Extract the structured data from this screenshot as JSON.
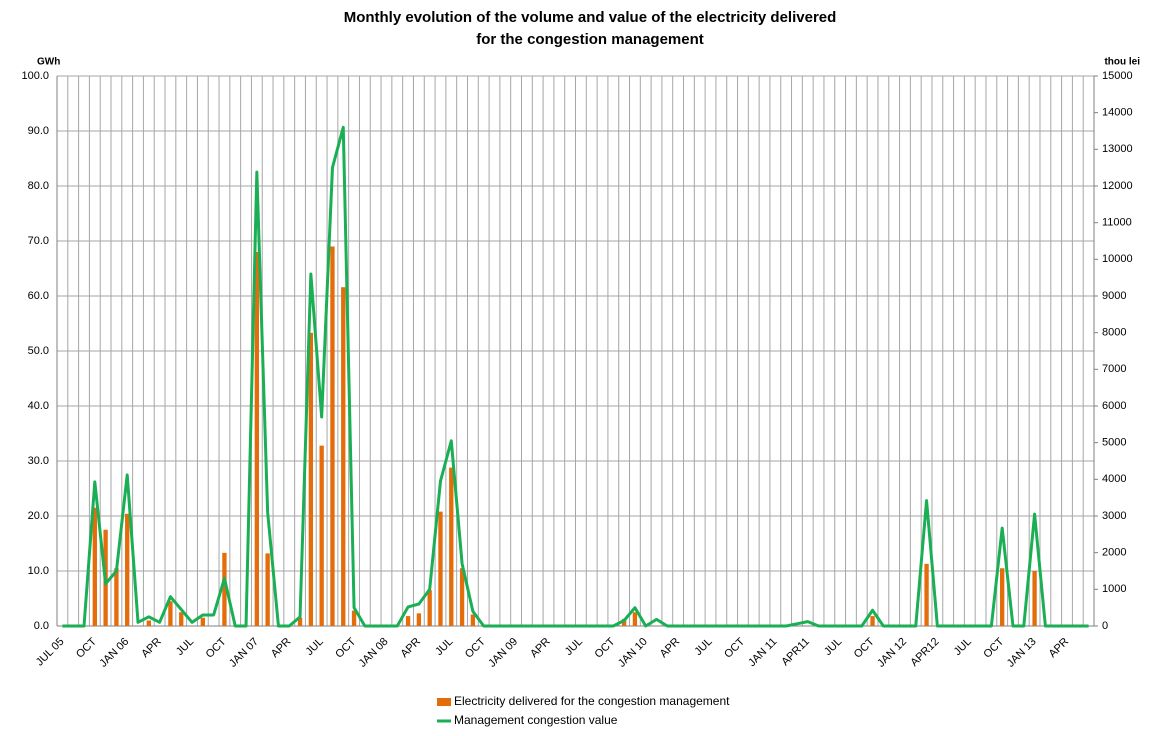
{
  "chart_data": {
    "type": "bar-line",
    "title": [
      "Monthly evolution of the volume and value of the electricity delivered",
      "for the congestion management"
    ],
    "y_label": "GWh",
    "y2_label": "thou lei",
    "categories": [
      "JUL 05",
      null,
      null,
      "OCT",
      null,
      null,
      "JAN 06",
      null,
      null,
      "APR",
      null,
      null,
      "JUL",
      null,
      null,
      "OCT",
      null,
      null,
      "JAN 07",
      null,
      null,
      "APR",
      null,
      null,
      "JUL",
      null,
      null,
      "OCT",
      null,
      null,
      "JAN 08",
      null,
      null,
      "APR",
      null,
      null,
      "JUL",
      null,
      null,
      "OCT",
      null,
      null,
      "JAN 09",
      null,
      null,
      "APR",
      null,
      null,
      "JUL",
      null,
      null,
      "OCT",
      null,
      null,
      "JAN 10",
      null,
      null,
      "APR",
      null,
      null,
      "JUL",
      null,
      null,
      "OCT",
      null,
      null,
      "JAN 11",
      null,
      null,
      "APR11",
      null,
      null,
      "JUL",
      null,
      null,
      "OCT",
      null,
      null,
      "JAN 12",
      null,
      null,
      "APR12",
      null,
      null,
      "JUL",
      null,
      null,
      "OCT",
      null,
      null,
      "JAN 13",
      null,
      null,
      "APR",
      null,
      null
    ],
    "series": [
      {
        "name": "Electricity delivered for the congestion management",
        "type": "bar",
        "color": "#e46c0a",
        "values": [
          0,
          0,
          0,
          21.5,
          17.5,
          10.5,
          20.4,
          0,
          1,
          0,
          4.5,
          2.5,
          0,
          1.5,
          0,
          13.3,
          0,
          0,
          68,
          13.2,
          0,
          0,
          1.5,
          53.3,
          32.8,
          69,
          61.6,
          2.8,
          0,
          0,
          0,
          0,
          1.8,
          2.3,
          6.5,
          20.8,
          28.8,
          10.5,
          2.1,
          0,
          0,
          0,
          0,
          0,
          0,
          0,
          0,
          0,
          0,
          0,
          0,
          0,
          1.3,
          2.5,
          0,
          0,
          0,
          0,
          0,
          0,
          0,
          0,
          0,
          0,
          0,
          0,
          0,
          0,
          0,
          0,
          0,
          0,
          0,
          0,
          0,
          1.8,
          0,
          0,
          0,
          0,
          11.3,
          0,
          0,
          0,
          0,
          0,
          0,
          10.5,
          0,
          0,
          10,
          0,
          0,
          0,
          0,
          0
        ]
      },
      {
        "name": "Management congestion value",
        "type": "line",
        "axis": "y2",
        "color": "#1aaf54",
        "values": [
          0,
          0,
          0,
          3930,
          1150,
          1500,
          4120,
          100,
          250,
          100,
          800,
          450,
          100,
          300,
          300,
          1300,
          0,
          0,
          12380,
          3100,
          0,
          0,
          250,
          9600,
          5700,
          12500,
          13600,
          500,
          0,
          0,
          0,
          0,
          520,
          600,
          1000,
          3950,
          5050,
          1700,
          400,
          0,
          0,
          0,
          0,
          0,
          0,
          0,
          0,
          0,
          0,
          0,
          0,
          0,
          150,
          500,
          0,
          180,
          0,
          0,
          0,
          0,
          0,
          0,
          0,
          0,
          0,
          0,
          0,
          0,
          60,
          120,
          0,
          0,
          0,
          0,
          0,
          430,
          0,
          0,
          0,
          0,
          3420,
          0,
          0,
          0,
          0,
          0,
          0,
          2670,
          0,
          0,
          3050,
          0,
          0,
          0,
          0,
          0
        ]
      }
    ],
    "ylim": [
      0,
      100
    ],
    "yticks": [
      {
        "value": 0,
        "label": "0.0"
      },
      {
        "value": 10,
        "label": "10.0"
      },
      {
        "value": 20,
        "label": "20.0"
      },
      {
        "value": 30,
        "label": "30.0"
      },
      {
        "value": 40,
        "label": "40.0"
      },
      {
        "value": 50,
        "label": "50.0"
      },
      {
        "value": 60,
        "label": "60.0"
      },
      {
        "value": 70,
        "label": "70.0"
      },
      {
        "value": 80,
        "label": "80.0"
      },
      {
        "value": 90,
        "label": "90.0"
      },
      {
        "value": 100,
        "label": "100.0"
      }
    ],
    "y2lim": [
      0,
      15000
    ],
    "y2ticks": [
      0,
      1000,
      2000,
      3000,
      4000,
      5000,
      6000,
      7000,
      8000,
      9000,
      10000,
      11000,
      12000,
      13000,
      14000,
      15000
    ],
    "grid": true,
    "legend": "bottom"
  }
}
